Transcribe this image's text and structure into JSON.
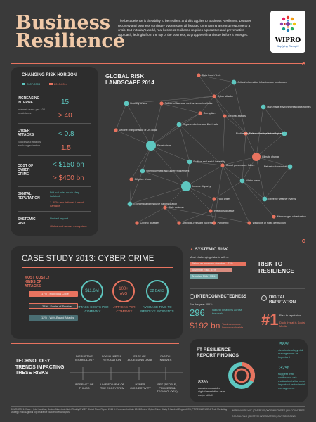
{
  "header": {
    "title_line1": "Business",
    "title_line2": "Resilience",
    "intro": "The best defense is the ability to be resilient and this applies to Business Resilience. Disaster recovery and business continuity systems are all focused on ensuring a strong response to a crisis. But in today's world, real business resilience requires a proactive and preventative approach, led right from the top of the business, to grapple with an issue before it emerges.",
    "logo_name": "WIPRO",
    "logo_tagline": "Applying Thought"
  },
  "risk_horizon": {
    "title": "CHANGING RISK HORIZON",
    "legend_a": "2007-2008",
    "legend_b": "2013-2014",
    "rows": [
      {
        "label": "INCREASING INTERNET",
        "sub": "Internet users per 100 inhabitants",
        "old": "15",
        "new": "> 40"
      },
      {
        "label": "CYBER ATTACKS",
        "sub": "Successful attacks/ week/organization",
        "old": "< 0.8",
        "new": "1.5"
      },
      {
        "label": "COST OF CYBER CRIME",
        "sub": "",
        "old": "< $150 bn",
        "new": "> $400 bn"
      },
      {
        "label": "DIGITAL REPUTATION",
        "sub": "",
        "old": "Did not exist much Very isolated",
        "new": "1. 87% reputational / brand damage"
      },
      {
        "label": "SYSTEMIC RISK",
        "sub": "",
        "old": "Limited Impact",
        "new": "Global and across ecosystem"
      }
    ]
  },
  "global_risk": {
    "title_line1": "GLOBAL RISK",
    "title_line2": "LANDSCAPE 2014",
    "nodes": [
      "Data fraud / theft",
      "Critical information infrastructure breakdown",
      "Cyber attacks",
      "Liquidity crises",
      "Failure of financial mechanism or institution",
      "Corruption",
      "Terrorist attacks",
      "Man-made environmental catastrophes",
      "Biodiversity loss and ecosystem collapse",
      "Decline of importance of US dollar",
      "Organized crime and illicit trade",
      "Failure of critical infrastructure",
      "Fiscal crises",
      "Climate change",
      "Unemployment and underemployment",
      "Political and social instability",
      "Global governance failure",
      "Oil price shock",
      "Water crises",
      "Natural catastrophes",
      "Economic and resource nationalization",
      "Income disparity",
      "Food crises",
      "Extreme weather events",
      "State collapse",
      "Infectious disease",
      "Mismanaged urbanization",
      "Chronic diseases",
      "Antibiotic-resistant bacteria",
      "Pandemic",
      "Weapons of mass destruction"
    ]
  },
  "case_study": {
    "title": "CASE STUDY 2013: CYBER CRIME",
    "side_label": "MOST COSTLY KINDS OF ATTACKS",
    "bars": [
      {
        "label": "17% - Malicious Code",
        "pct": 17
      },
      {
        "label": "21% - Denial of Service",
        "pct": 21
      },
      {
        "label": "12% - Web-Based Attacks",
        "pct": 12
      }
    ],
    "stats": [
      {
        "value": "$11.6M",
        "caption": "ATTACK COSTS PER COMPANY"
      },
      {
        "value": "100+",
        "value2": "AVG",
        "caption": "ATTACKS PER COMPANY"
      },
      {
        "value": "32 DAYS",
        "caption": "AVERAGE TIME TO RESOLVE INCIDENTS"
      }
    ]
  },
  "systemic": {
    "title": "SYSTEMIC RISK",
    "sub": "Most challenging risks to a firm:",
    "bars": [
      {
        "label": "Risk of an economic downturn - 71%",
        "pct": 71
      },
      {
        "label": "Sovereign Risk - 51%",
        "pct": 51
      },
      {
        "label": "Terrorism Risk - 33%",
        "pct": 33
      }
    ]
  },
  "risk_to_resilience": "RISK TO RESILIENCE",
  "interconnect": {
    "title": "INTERCONNECTEDNESS",
    "sub": "For the year 2013:",
    "v1": "296",
    "v1_caption": "Natural disasters across the world",
    "v2": "$192 bn",
    "v2_caption": "Total economic losses worldwide"
  },
  "digital_rep": {
    "title": "DIGITAL REPUTATION",
    "rank": "#1",
    "cap1": "Risk to reputation",
    "cap2": "Duck threat is Social Media"
  },
  "tech_trends": {
    "title": "TECHNOLOGY TRENDS IMPACTING THESE RISKS",
    "top": [
      "DISRUPTIVE TECHNOLOGY",
      "SOCIAL MEDIA REVOLUTION",
      "EASE OF ACCESSING DATA",
      "DIGITAL NATIVES"
    ],
    "bottom": [
      "INTERNET OF THINGS",
      "UNIFIED VIEW OF THE ECOSYSTEM",
      "HYPER-CONNECTIVITY",
      "PPT (PEOPLE, PROCESS & TECHNOLOGY)"
    ]
  },
  "ft_report": {
    "title": "FT RESILIENCE REPORT FINDINGS",
    "f1_value": "98%",
    "f1_caption": "view technology risk management as important",
    "f2_value": "32%",
    "f2_caption": "suggest that continuous risk evaluation is the most important factor in risk management",
    "f3_value": "83%",
    "f3_caption": "consider consider digital reputation as a major pitfall"
  },
  "footer": {
    "sources": "SOURCES: 1. Ware: Hyde Hamilton, Boston Macintosh Hotel Reality  2. WEF Global Risks Report 2014  3. Ponemon Institute 2013  Cost of Cyber Crime Study 3. Bank of England, EB, FT RESILIENCE  4. Tech Marketing Strategy: Risk & global top Insurance Stakeholder Analytics",
    "wipro": "WIPRO NYSE:WIT | OVER 140,000 EMPLOYEES | 60 COUNTRIES",
    "wipro2": "CONSULTING | SYSTEM INTEGRATION | OUTSOURCING"
  },
  "colors": {
    "teal": "#5ec7c0",
    "salmon": "#e8735f",
    "background": "#3a3a3a",
    "panel": "#2d2d2d"
  }
}
